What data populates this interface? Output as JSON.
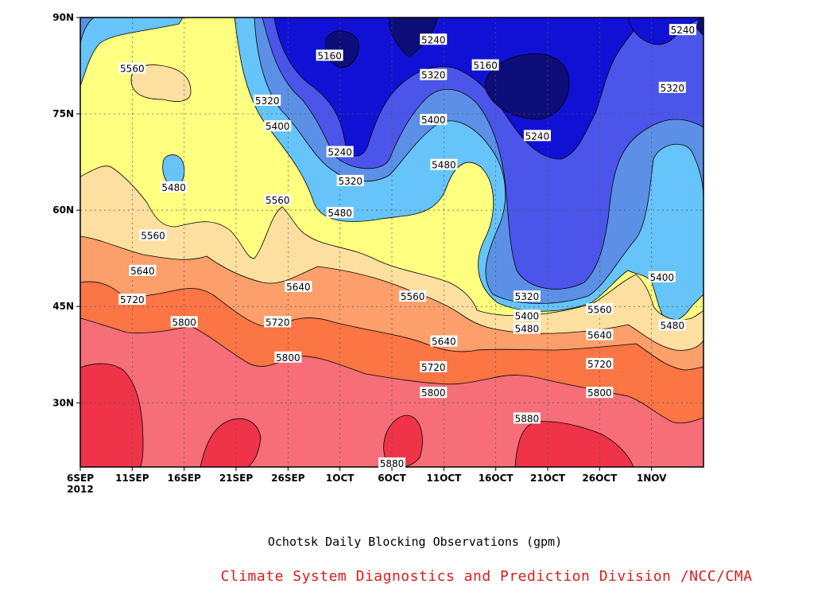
{
  "chart_data": {
    "type": "heatmap",
    "subtype": "filled-contour",
    "title": "Ochotsk Daily Blocking Observations (gpm)",
    "xlabel": "",
    "ylabel": "",
    "x_tick_labels": [
      "6SEP",
      "11SEP",
      "16SEP",
      "21SEP",
      "26SEP",
      "1OCT",
      "6OCT",
      "11OCT",
      "16OCT",
      "21OCT",
      "26OCT",
      "1NOV"
    ],
    "x_year_label": "2012",
    "x_range": [
      "2012-09-06",
      "2012-11-05"
    ],
    "y_tick_labels": [
      "30N",
      "45N",
      "60N",
      "75N",
      "90N"
    ],
    "y_tick_values": [
      30,
      45,
      60,
      75,
      90
    ],
    "ylim": [
      20,
      90
    ],
    "grid": true,
    "contour_levels": [
      5160,
      5240,
      5320,
      5400,
      5480,
      5560,
      5640,
      5720,
      5800,
      5880
    ],
    "fill_colors": {
      "below_5160": "#0d0d7a",
      "5160_5240": "#1111d6",
      "5240_5320": "#4b55ea",
      "5320_5400": "#5b90e6",
      "5400_5480": "#66c4fa",
      "5480_5560": "#ffff80",
      "5560_5640": "#fde0a0",
      "5640_5720": "#fc9f6b",
      "5720_5800": "#fc7544",
      "5800_5880": "#f66e78",
      "above_5880": "#ef3348"
    },
    "contour_labels": [
      {
        "text": "5560",
        "date": "2012-09-11",
        "lat": 82
      },
      {
        "text": "5480",
        "date": "2012-09-15",
        "lat": 63.5
      },
      {
        "text": "5560",
        "date": "2012-09-13",
        "lat": 56
      },
      {
        "text": "5640",
        "date": "2012-09-12",
        "lat": 50.5
      },
      {
        "text": "5720",
        "date": "2012-09-11",
        "lat": 46
      },
      {
        "text": "5800",
        "date": "2012-09-16",
        "lat": 42.5
      },
      {
        "text": "5320",
        "date": "2012-09-24",
        "lat": 77
      },
      {
        "text": "5400",
        "date": "2012-09-25",
        "lat": 73
      },
      {
        "text": "5560",
        "date": "2012-09-25",
        "lat": 61.5
      },
      {
        "text": "5640",
        "date": "2012-09-27",
        "lat": 48
      },
      {
        "text": "5720",
        "date": "2012-09-25",
        "lat": 42.5
      },
      {
        "text": "5800",
        "date": "2012-09-26",
        "lat": 37
      },
      {
        "text": "5160",
        "date": "2012-09-30",
        "lat": 84
      },
      {
        "text": "5240",
        "date": "2012-10-01",
        "lat": 69
      },
      {
        "text": "5320",
        "date": "2012-10-02",
        "lat": 64.5
      },
      {
        "text": "5480",
        "date": "2012-10-01",
        "lat": 59.5
      },
      {
        "text": "5240",
        "date": "2012-10-10",
        "lat": 86.5
      },
      {
        "text": "5320",
        "date": "2012-10-10",
        "lat": 81
      },
      {
        "text": "5400",
        "date": "2012-10-10",
        "lat": 74
      },
      {
        "text": "5480",
        "date": "2012-10-11",
        "lat": 67
      },
      {
        "text": "5560",
        "date": "2012-10-08",
        "lat": 46.5
      },
      {
        "text": "5640",
        "date": "2012-10-11",
        "lat": 39.5
      },
      {
        "text": "5720",
        "date": "2012-10-10",
        "lat": 35.5
      },
      {
        "text": "5800",
        "date": "2012-10-10",
        "lat": 31.5
      },
      {
        "text": "5880",
        "date": "2012-10-06",
        "lat": 20.5
      },
      {
        "text": "5160",
        "date": "2012-10-15",
        "lat": 82.5
      },
      {
        "text": "5240",
        "date": "2012-10-20",
        "lat": 71.5
      },
      {
        "text": "5320",
        "date": "2012-10-19",
        "lat": 46.5
      },
      {
        "text": "5400",
        "date": "2012-10-19",
        "lat": 43.5
      },
      {
        "text": "5480",
        "date": "2012-10-19",
        "lat": 41.5
      },
      {
        "text": "5880",
        "date": "2012-10-19",
        "lat": 27.5
      },
      {
        "text": "5560",
        "date": "2012-10-26",
        "lat": 44.5
      },
      {
        "text": "5640",
        "date": "2012-10-26",
        "lat": 40.5
      },
      {
        "text": "5720",
        "date": "2012-10-26",
        "lat": 36
      },
      {
        "text": "5800",
        "date": "2012-10-26",
        "lat": 31.5
      },
      {
        "text": "5240",
        "date": "2012-11-03",
        "lat": 88
      },
      {
        "text": "5320",
        "date": "2012-11-02",
        "lat": 79
      },
      {
        "text": "5400",
        "date": "2012-11-01",
        "lat": 49.5
      },
      {
        "text": "5480",
        "date": "2012-11-02",
        "lat": 42
      }
    ]
  },
  "footer": {
    "credit": "Climate System Diagnostics and Prediction Division /NCC/CMA"
  }
}
